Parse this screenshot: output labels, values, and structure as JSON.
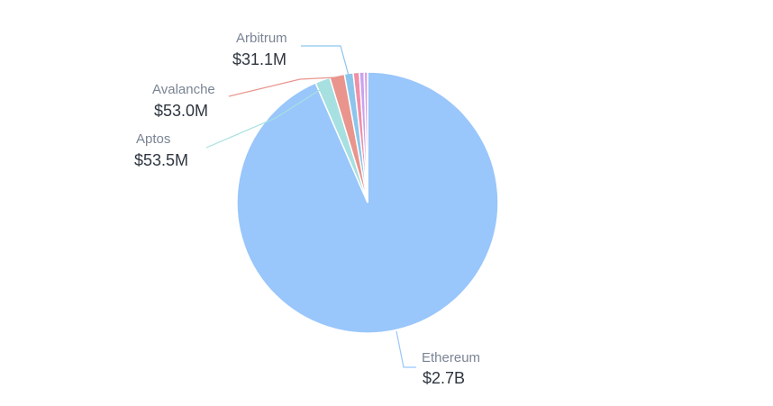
{
  "chart_data": {
    "type": "pie",
    "slices": [
      {
        "name": "Ethereum",
        "value": 2700,
        "display": "$2.7B",
        "color": "#99c6fb",
        "labeled": true
      },
      {
        "name": "Aptos",
        "value": 53.5,
        "display": "$53.5M",
        "color": "#a7e0e0",
        "labeled": true
      },
      {
        "name": "Avalanche",
        "value": 53.0,
        "display": "$53.0M",
        "color": "#e9958d",
        "labeled": true
      },
      {
        "name": "Arbitrum",
        "value": 31.1,
        "display": "$31.1M",
        "color": "#8cc5ec",
        "labeled": true
      },
      {
        "name": "",
        "value": 22,
        "display": "",
        "color": "#f08fa6",
        "labeled": false
      },
      {
        "name": "",
        "value": 17,
        "display": "",
        "color": "#c9a3ee",
        "labeled": false
      },
      {
        "name": "",
        "value": 12,
        "display": "",
        "color": "#d79ee6",
        "labeled": false
      }
    ],
    "title": "",
    "legend": "none",
    "leader_colors": {
      "Ethereum": "#99c6fb",
      "Aptos": "#a7e0e0",
      "Avalanche": "#e9958d",
      "Arbitrum": "#8cc5ec"
    }
  }
}
